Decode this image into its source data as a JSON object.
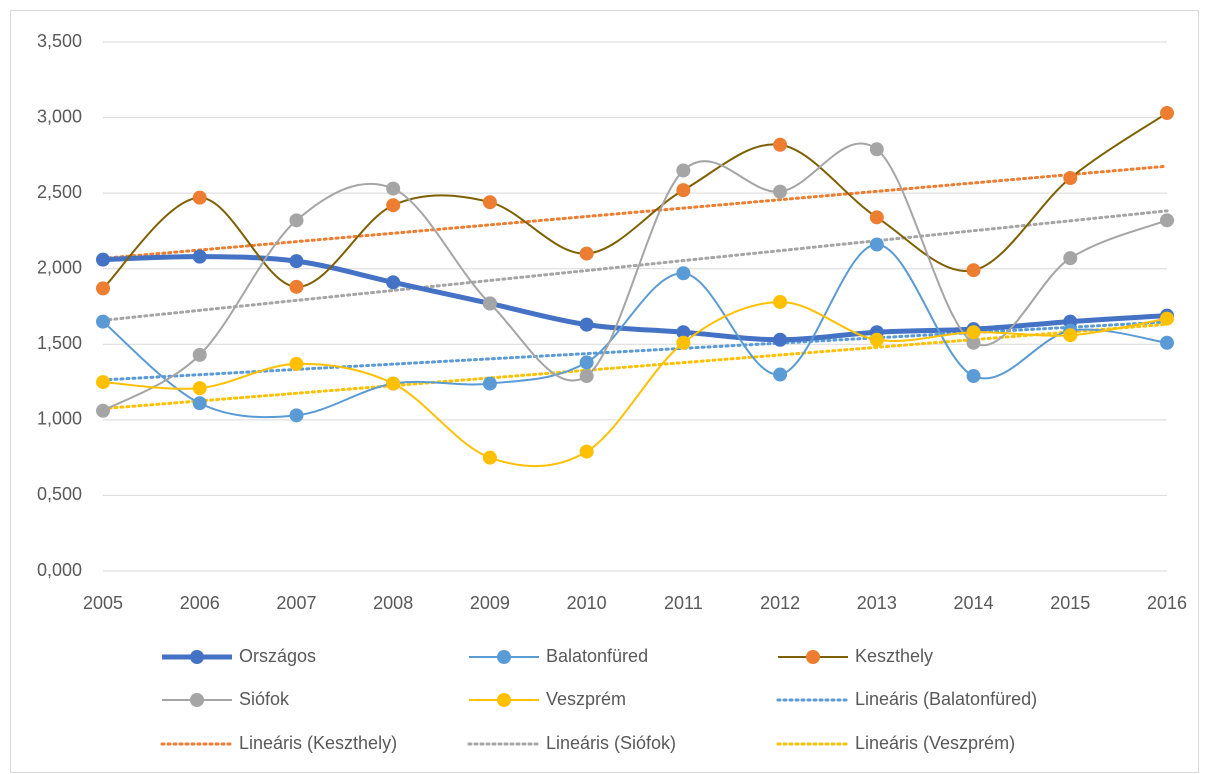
{
  "chart_data": {
    "type": "line",
    "smooth": true,
    "categories": [
      "2005",
      "2006",
      "2007",
      "2008",
      "2009",
      "2010",
      "2011",
      "2012",
      "2013",
      "2014",
      "2015",
      "2016"
    ],
    "ylim": [
      0,
      3.5
    ],
    "yticks": [
      {
        "value": 0,
        "label": "0,000"
      },
      {
        "value": 0.5,
        "label": "0,500"
      },
      {
        "value": 1,
        "label": "1,000"
      },
      {
        "value": 1.5,
        "label": "1,500"
      },
      {
        "value": 2,
        "label": "2,000"
      },
      {
        "value": 2.5,
        "label": "2,500"
      },
      {
        "value": 3,
        "label": "3,000"
      },
      {
        "value": 3.5,
        "label": "3,500"
      }
    ],
    "grid": true,
    "legend": "bottom",
    "series": [
      {
        "name": "Országos",
        "color": "#4472c4",
        "marker_color": "#4472c4",
        "width": 5,
        "values": [
          2.06,
          2.08,
          2.05,
          1.91,
          1.77,
          1.63,
          1.58,
          1.53,
          1.58,
          1.6,
          1.65,
          1.69
        ]
      },
      {
        "name": "Balatonfüred",
        "color": "#5b9bd5",
        "marker_color": "#5b9bd5",
        "width": 2,
        "values": [
          1.65,
          1.11,
          1.03,
          1.24,
          1.24,
          1.38,
          1.97,
          1.3,
          2.16,
          1.29,
          1.59,
          1.51
        ],
        "trendline": {
          "name": "Lineáris (Balatonfüred)",
          "kind": "linear"
        }
      },
      {
        "name": "Keszthely",
        "color": "#7f6000",
        "marker_color": "#ed7d31",
        "width": 2,
        "values": [
          1.87,
          2.47,
          1.88,
          2.42,
          2.44,
          2.1,
          2.52,
          2.82,
          2.34,
          1.99,
          2.6,
          3.03
        ],
        "trendline": {
          "name": "Lineáris (Keszthely)",
          "kind": "linear",
          "color": "#ed7d31"
        }
      },
      {
        "name": "Siófok",
        "color": "#a5a5a5",
        "marker_color": "#a5a5a5",
        "width": 2,
        "values": [
          1.06,
          1.43,
          2.32,
          2.53,
          1.77,
          1.29,
          2.65,
          2.51,
          2.79,
          1.51,
          2.07,
          2.32
        ],
        "trendline": {
          "name": "Lineáris (Siófok)",
          "kind": "linear"
        }
      },
      {
        "name": "Veszprém",
        "color": "#ffc000",
        "marker_color": "#ffc000",
        "width": 2,
        "values": [
          1.25,
          1.21,
          1.37,
          1.24,
          0.75,
          0.79,
          1.51,
          1.78,
          1.53,
          1.58,
          1.56,
          1.67
        ],
        "trendline": {
          "name": "Lineáris (Veszprém)",
          "kind": "linear"
        }
      }
    ]
  }
}
